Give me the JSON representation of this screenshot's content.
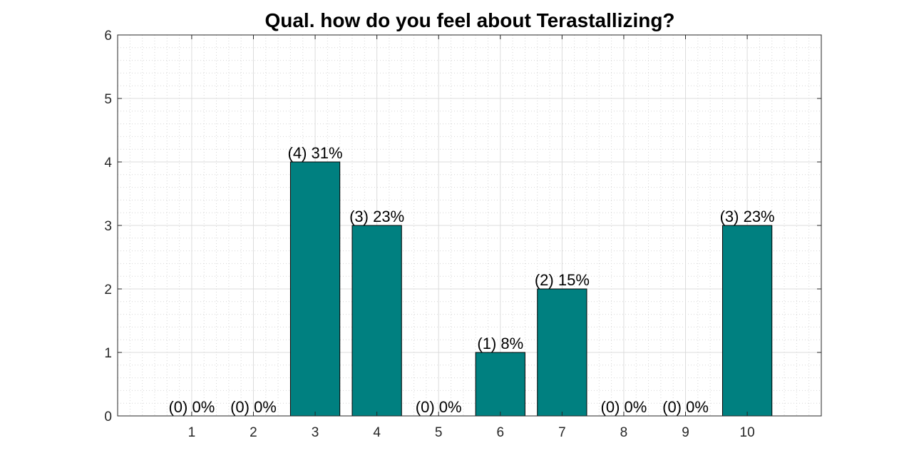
{
  "chart_data": {
    "type": "bar",
    "title": "Qual. how do you feel about Terastallizing?",
    "xlabel": "",
    "ylabel": "",
    "categories": [
      "1",
      "2",
      "3",
      "4",
      "5",
      "6",
      "7",
      "8",
      "9",
      "10"
    ],
    "values": [
      0,
      0,
      4,
      3,
      0,
      1,
      2,
      0,
      0,
      3
    ],
    "data_labels": [
      "(0) 0%",
      "(0) 0%",
      "(4) 31%",
      "(3) 23%",
      "(0) 0%",
      "(1) 8%",
      "(2) 15%",
      "(0) 0%",
      "(0) 0%",
      "(3) 23%"
    ],
    "xlim": [
      -0.2,
      11.2
    ],
    "ylim": [
      0,
      6
    ],
    "yticks": [
      "0",
      "1",
      "2",
      "3",
      "4",
      "5",
      "6"
    ],
    "grid": true,
    "minor_grid": true,
    "bar_color": "#008080"
  }
}
